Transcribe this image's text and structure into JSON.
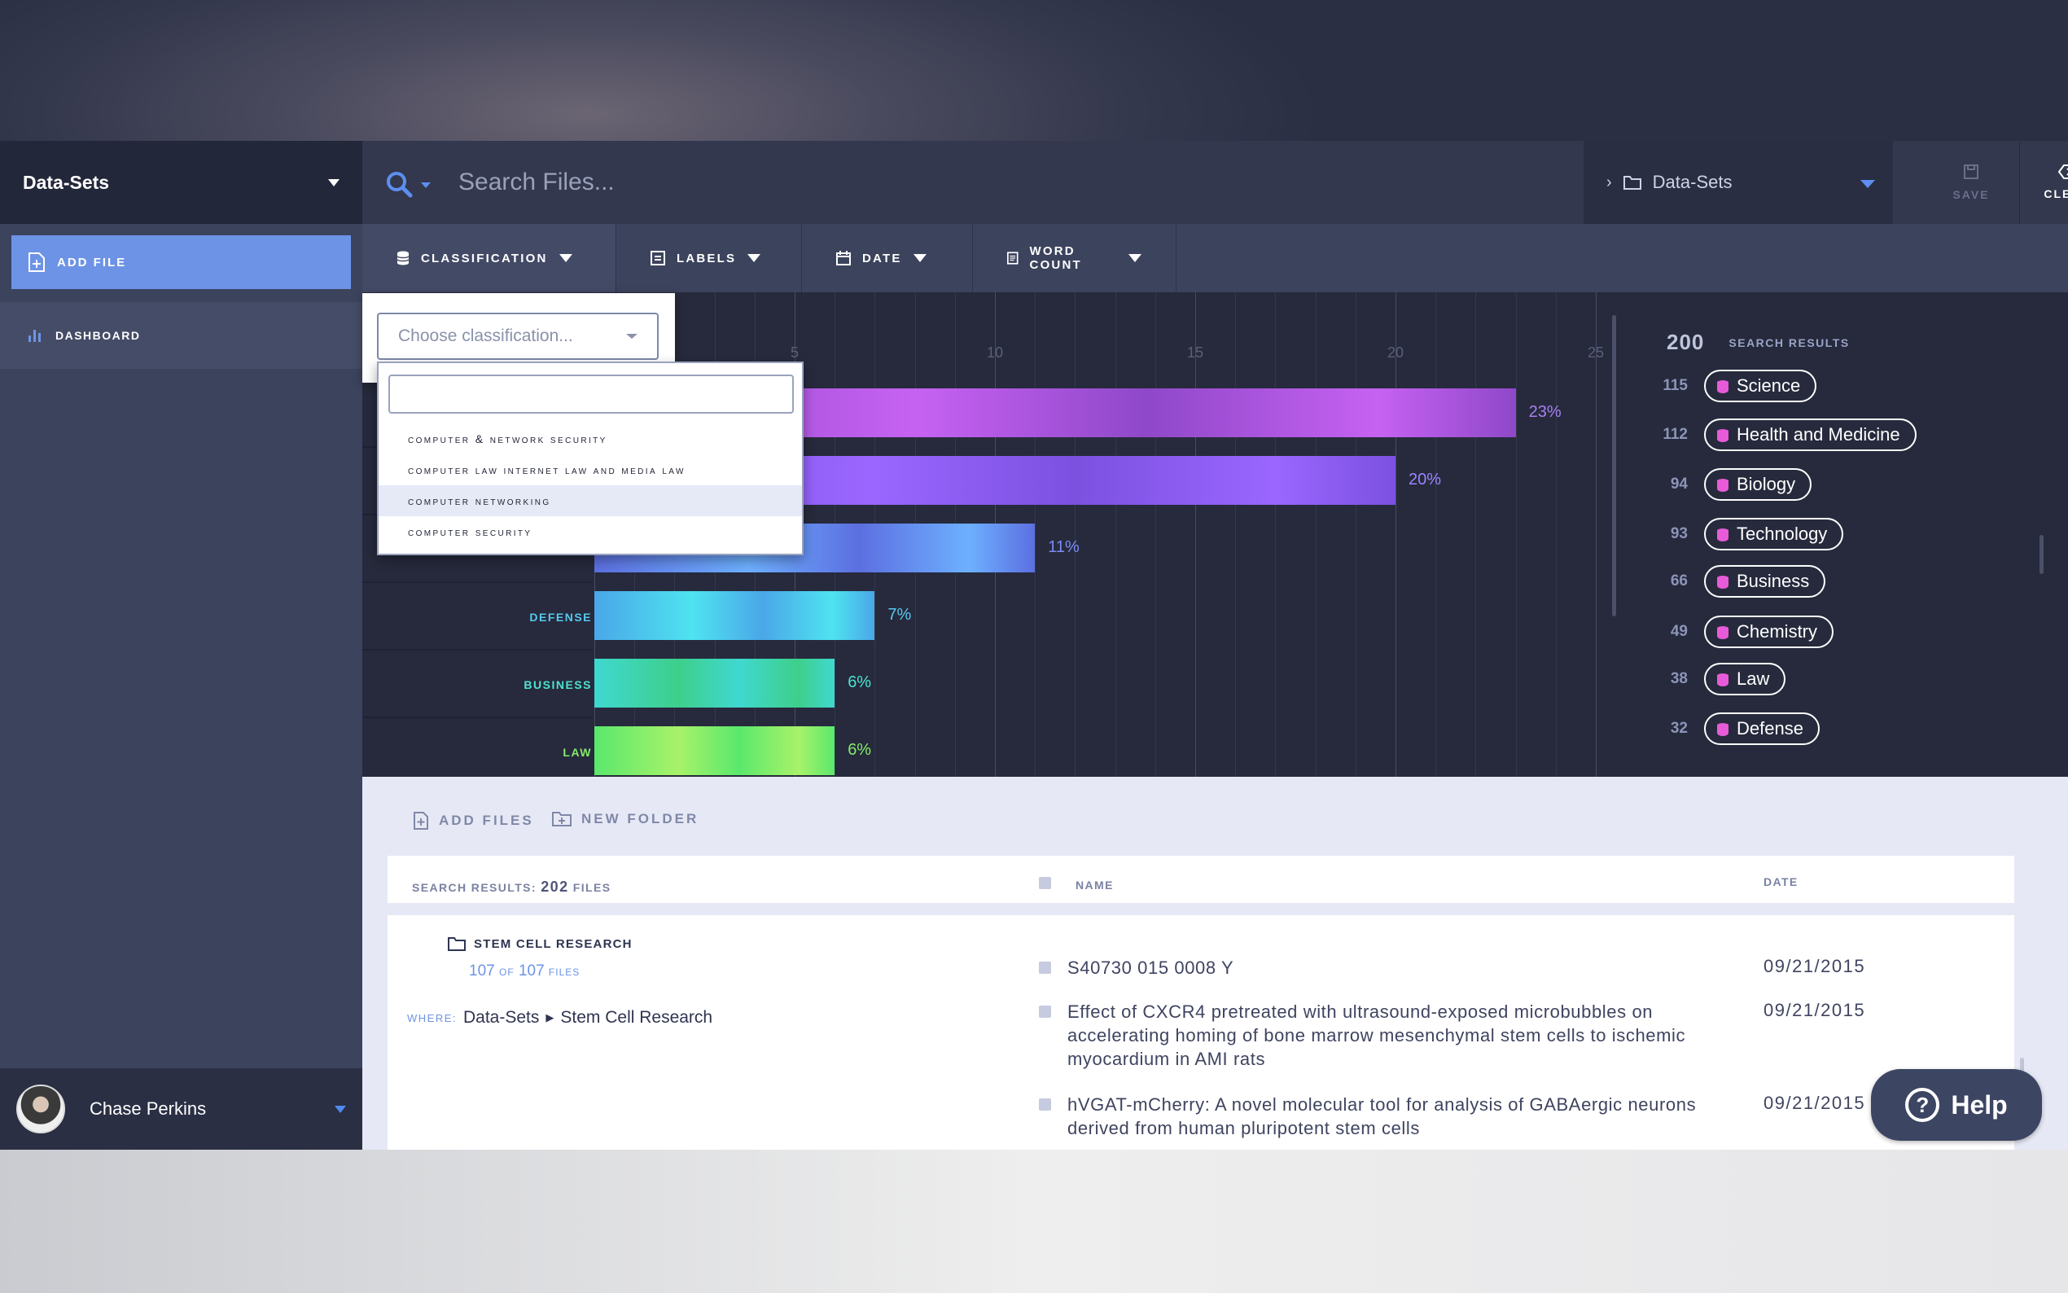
{
  "sidebar": {
    "dataset_select": "Data-Sets",
    "add_file": "ADD FILE",
    "dashboard": "DASHBOARD",
    "user_name": "Chase Perkins"
  },
  "topbar": {
    "search_placeholder": "Search Files...",
    "breadcrumb": "Data-Sets",
    "save": "SAVE",
    "clear": "CLEAR"
  },
  "filters": {
    "classification": "CLASSIFICATION",
    "labels": "LABELS",
    "date": "DATE",
    "word_count": "WORD COUNT"
  },
  "dropdown": {
    "placeholder": "Choose classification...",
    "search_value": "",
    "options": [
      "computer & network security",
      "computer law internet law and media law",
      "computer networking",
      "computer security"
    ],
    "active_index": 2
  },
  "chart_data": {
    "type": "bar",
    "orientation": "horizontal",
    "ticks": [
      "5",
      "10",
      "15",
      "20",
      "25"
    ],
    "xlim": [
      0,
      25
    ],
    "categories": [
      "",
      "",
      "TECHNOLOGY",
      "DEFENSE",
      "BUSINESS",
      "LAW"
    ],
    "values": [
      23,
      20,
      11,
      7,
      6,
      6
    ],
    "labels": [
      "23%",
      "20%",
      "11%",
      "7%",
      "6%",
      "6%"
    ],
    "colors": [
      [
        "#8f48c9",
        "#c662f2"
      ],
      [
        "#7c51e0",
        "#9a66ff"
      ],
      [
        "#5c6fe0",
        "#6db0ff"
      ],
      [
        "#4aa7e8",
        "#4ee3f0"
      ],
      [
        "#3fd8d0",
        "#3ecf8a"
      ],
      [
        "#5ae86c",
        "#a8f26a"
      ]
    ],
    "label_colors": [
      "#a880f0",
      "#9c85ff",
      "#7a8cf5",
      "#57c8ef",
      "#4fe2d2",
      "#86ea6a"
    ]
  },
  "results": {
    "total": "200",
    "label": "SEARCH RESULTS",
    "items": [
      {
        "count": "115",
        "name": "Science"
      },
      {
        "count": "112",
        "name": "Health and Medicine"
      },
      {
        "count": "94",
        "name": "Biology"
      },
      {
        "count": "93",
        "name": "Technology"
      },
      {
        "count": "66",
        "name": "Business"
      },
      {
        "count": "49",
        "name": "Chemistry"
      },
      {
        "count": "38",
        "name": "Law"
      },
      {
        "count": "32",
        "name": "Defense"
      }
    ]
  },
  "files": {
    "add_files": "ADD FILES",
    "new_folder": "NEW FOLDER",
    "search_results_label": "SEARCH RESULTS:",
    "search_results_count": "202",
    "search_results_unit": "FILES",
    "col_name": "NAME",
    "col_date": "DATE",
    "folder_name": "STEM CELL RESEARCH",
    "folder_count_a": "107",
    "folder_count_of": "OF",
    "folder_count_b": "107",
    "folder_count_unit": "FILES",
    "where_label": "WHERE:",
    "where_path_1": "Data-Sets",
    "where_path_2": "Stem Cell Research",
    "docs": [
      {
        "name": "S40730 015 0008 Y",
        "date": "09/21/2015"
      },
      {
        "name": "Effect of CXCR4 pretreated with ultrasound-exposed microbubbles on accelerating homing of bone marrow mesenchymal stem cells to ischemic myocardium in AMI rats",
        "date": "09/21/2015"
      },
      {
        "name": "hVGAT-mCherry: A novel molecular tool for analysis of GABAergic neurons derived from human pluripotent stem cells",
        "date": "09/21/2015"
      }
    ]
  },
  "help": "Help"
}
